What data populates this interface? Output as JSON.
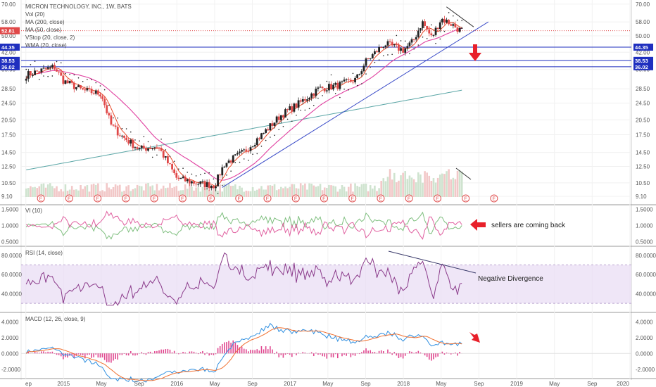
{
  "header": {
    "title": "MICRON TECHNOLOGY, INC., 1W, BATS",
    "indicators": [
      "Vol (20)",
      "MA (200, close)",
      "MA (50, close)",
      "VStop (20, close, 2)",
      "WMA (20, close)"
    ]
  },
  "colors": {
    "bull": "#222222",
    "bear": "#e04848",
    "ma200": "#5aa6a6",
    "ma50": "#e040a0",
    "wma": "#e84a2a",
    "trend": "#3b4cc8",
    "hline": "#1f2fbf",
    "vi_plus": "#7fbf7f",
    "vi_minus": "#e060a0",
    "rsi": "#8a3a8a",
    "rsi_band": "#e8dcf4",
    "macd": "#2f8fe0",
    "signal": "#f07030",
    "hist": "#e04890",
    "arrow": "#e8202a"
  },
  "chart_data": [
    {
      "type": "candlestick",
      "title": "MICRON TECHNOLOGY, INC., 1W, BATS",
      "y_ticks": [
        70.0,
        58.0,
        50.0,
        42.0,
        35.0,
        28.5,
        24.5,
        20.5,
        17.5,
        14.5,
        12.5,
        10.5,
        9.1
      ],
      "y_ticks_labels": [
        "70.00",
        "58.00",
        "50.00",
        "42.00",
        "35.00",
        "28.50",
        "24.50",
        "20.50",
        "17.50",
        "14.50",
        "12.50",
        "10.50",
        "9.10"
      ],
      "last_price": {
        "value": 52.81,
        "label": "52.81"
      },
      "horizontal_levels": [
        {
          "value": 44.35,
          "label": "44.35"
        },
        {
          "value": 38.53,
          "label": "38.53"
        },
        {
          "value": 36.02,
          "label": "36.02"
        }
      ],
      "earnings_marker_label": "E",
      "series_close_keypoints": [
        [
          "2014-09",
          33.0
        ],
        [
          "2014-11",
          35.0
        ],
        [
          "2014-12",
          36.0
        ],
        [
          "2015-01",
          31.0
        ],
        [
          "2015-03",
          28.0
        ],
        [
          "2015-05",
          27.0
        ],
        [
          "2015-06",
          19.5
        ],
        [
          "2015-07",
          17.5
        ],
        [
          "2015-09",
          15.0
        ],
        [
          "2015-11",
          15.5
        ],
        [
          "2016-01",
          11.0
        ],
        [
          "2016-03",
          10.5
        ],
        [
          "2016-05",
          10.2
        ],
        [
          "2016-06",
          12.8
        ],
        [
          "2016-08",
          14.5
        ],
        [
          "2016-10",
          17.5
        ],
        [
          "2016-12",
          21.5
        ],
        [
          "2017-02",
          24.5
        ],
        [
          "2017-04",
          28.5
        ],
        [
          "2017-06",
          29.5
        ],
        [
          "2017-08",
          31.5
        ],
        [
          "2017-09",
          38.0
        ],
        [
          "2017-11",
          46.0
        ],
        [
          "2018-01",
          43.0
        ],
        [
          "2018-02",
          47.0
        ],
        [
          "2018-03",
          58.0
        ],
        [
          "2018-04",
          49.0
        ],
        [
          "2018-05",
          60.0
        ],
        [
          "2018-06",
          57.0
        ],
        [
          "2018-07",
          53.0
        ]
      ]
    },
    {
      "type": "line",
      "title": "VI (10)",
      "y_ticks": [
        1.5,
        1.0,
        0.5
      ],
      "y_ticks_labels": [
        "1.5000",
        "1.0000",
        "0.5000"
      ]
    },
    {
      "type": "line",
      "title": "RSI (14, close)",
      "y_ticks": [
        80,
        60,
        40
      ],
      "y_ticks_labels": [
        "80.0000",
        "60.0000",
        "40.0000"
      ],
      "band": [
        30,
        70
      ]
    },
    {
      "type": "line",
      "title": "MACD (12, 26, close, 9)",
      "y_ticks": [
        4,
        2,
        0,
        -2
      ],
      "y_ticks_labels": [
        "4.0000",
        "2.0000",
        "0.0000",
        "-2.0000"
      ]
    }
  ],
  "time_axis": {
    "labels": [
      "ep",
      "2015",
      "May",
      "Sep",
      "2016",
      "May",
      "Sep",
      "2017",
      "May",
      "Sep",
      "2018",
      "May",
      "Sep",
      "2019",
      "May",
      "Sep",
      "2020"
    ]
  },
  "annotations": {
    "sellers": "sellers are coming back",
    "divergence": "Negative Divergence"
  }
}
